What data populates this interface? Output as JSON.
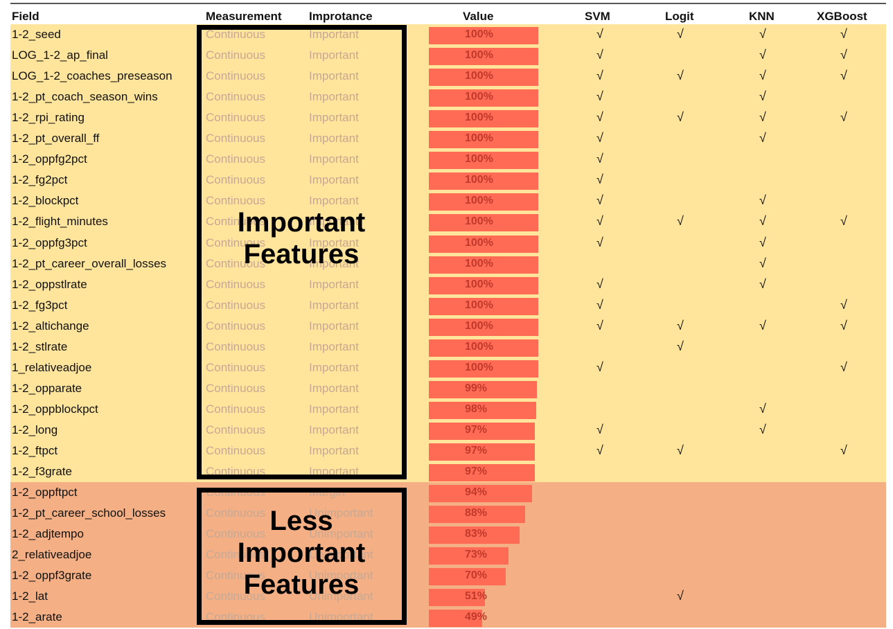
{
  "header": {
    "field": "Field",
    "measurement": "Measurement",
    "importance": "Improtance",
    "value": "Value",
    "svm": "SVM",
    "logit": "Logit",
    "knn": "KNN",
    "xgboost": "XGBoost"
  },
  "check_glyph": "√",
  "colors": {
    "important_band": "#ffe49c",
    "less_important_band": "#f4b084",
    "bar": "#ff6b55",
    "muted_text": "#c7a893"
  },
  "annotations": {
    "important": "Important Features",
    "less_important": "Less Important Features"
  },
  "chart_data": {
    "type": "table",
    "rows": [
      {
        "field": "1-2_seed",
        "measurement": "Continuous",
        "importance": "Important",
        "value": 100,
        "label": "100%",
        "svm": true,
        "logit": true,
        "knn": true,
        "xgb": true
      },
      {
        "field": "LOG_1-2_ap_final",
        "measurement": "Continuous",
        "importance": "Important",
        "value": 100,
        "label": "100%",
        "svm": true,
        "logit": false,
        "knn": true,
        "xgb": true
      },
      {
        "field": "LOG_1-2_coaches_preseason",
        "measurement": "Continuous",
        "importance": "Important",
        "value": 100,
        "label": "100%",
        "svm": true,
        "logit": true,
        "knn": true,
        "xgb": true
      },
      {
        "field": "1-2_pt_coach_season_wins",
        "measurement": "Continuous",
        "importance": "Important",
        "value": 100,
        "label": "100%",
        "svm": true,
        "logit": false,
        "knn": true,
        "xgb": false
      },
      {
        "field": "1-2_rpi_rating",
        "measurement": "Continuous",
        "importance": "Important",
        "value": 100,
        "label": "100%",
        "svm": true,
        "logit": true,
        "knn": true,
        "xgb": true
      },
      {
        "field": "1-2_pt_overall_ff",
        "measurement": "Continuous",
        "importance": "Important",
        "value": 100,
        "label": "100%",
        "svm": true,
        "logit": false,
        "knn": true,
        "xgb": false
      },
      {
        "field": "1-2_oppfg2pct",
        "measurement": "Continuous",
        "importance": "Important",
        "value": 100,
        "label": "100%",
        "svm": true,
        "logit": false,
        "knn": false,
        "xgb": false
      },
      {
        "field": "1-2_fg2pct",
        "measurement": "Continuous",
        "importance": "Important",
        "value": 100,
        "label": "100%",
        "svm": true,
        "logit": false,
        "knn": false,
        "xgb": false
      },
      {
        "field": "1-2_blockpct",
        "measurement": "Continuous",
        "importance": "Important",
        "value": 100,
        "label": "100%",
        "svm": true,
        "logit": false,
        "knn": true,
        "xgb": false
      },
      {
        "field": "1-2_flight_minutes",
        "measurement": "Continuous",
        "importance": "Important",
        "value": 100,
        "label": "100%",
        "svm": true,
        "logit": true,
        "knn": true,
        "xgb": true
      },
      {
        "field": "1-2_oppfg3pct",
        "measurement": "Continuous",
        "importance": "Important",
        "value": 100,
        "label": "100%",
        "svm": true,
        "logit": false,
        "knn": true,
        "xgb": false
      },
      {
        "field": "1-2_pt_career_overall_losses",
        "measurement": "Continuous",
        "importance": "Important",
        "value": 100,
        "label": "100%",
        "svm": false,
        "logit": false,
        "knn": true,
        "xgb": false
      },
      {
        "field": "1-2_oppstlrate",
        "measurement": "Continuous",
        "importance": "Important",
        "value": 100,
        "label": "100%",
        "svm": true,
        "logit": false,
        "knn": true,
        "xgb": false
      },
      {
        "field": "1-2_fg3pct",
        "measurement": "Continuous",
        "importance": "Important",
        "value": 100,
        "label": "100%",
        "svm": true,
        "logit": false,
        "knn": false,
        "xgb": true
      },
      {
        "field": "1-2_altichange",
        "measurement": "Continuous",
        "importance": "Important",
        "value": 100,
        "label": "100%",
        "svm": true,
        "logit": true,
        "knn": true,
        "xgb": true
      },
      {
        "field": "1-2_stlrate",
        "measurement": "Continuous",
        "importance": "Important",
        "value": 100,
        "label": "100%",
        "svm": false,
        "logit": true,
        "knn": false,
        "xgb": false
      },
      {
        "field": "1_relativeadjoe",
        "measurement": "Continuous",
        "importance": "Important",
        "value": 100,
        "label": "100%",
        "svm": true,
        "logit": false,
        "knn": false,
        "xgb": true
      },
      {
        "field": "1-2_opparate",
        "measurement": "Continuous",
        "importance": "Important",
        "value": 99,
        "label": "99%",
        "svm": false,
        "logit": false,
        "knn": false,
        "xgb": false
      },
      {
        "field": "1-2_oppblockpct",
        "measurement": "Continuous",
        "importance": "Important",
        "value": 98,
        "label": "98%",
        "svm": false,
        "logit": false,
        "knn": true,
        "xgb": false
      },
      {
        "field": "1-2_long",
        "measurement": "Continuous",
        "importance": "Important",
        "value": 97,
        "label": "97%",
        "svm": true,
        "logit": false,
        "knn": true,
        "xgb": false
      },
      {
        "field": "1-2_ftpct",
        "measurement": "Continuous",
        "importance": "Important",
        "value": 97,
        "label": "97%",
        "svm": true,
        "logit": true,
        "knn": false,
        "xgb": true
      },
      {
        "field": "1-2_f3grate",
        "measurement": "Continuous",
        "importance": "Important",
        "value": 97,
        "label": "97%",
        "svm": false,
        "logit": false,
        "knn": false,
        "xgb": false
      },
      {
        "field": "1-2_oppftpct",
        "measurement": "Continuous",
        "importance": "Margin",
        "value": 94,
        "label": "94%",
        "svm": false,
        "logit": false,
        "knn": false,
        "xgb": false
      },
      {
        "field": "1-2_pt_career_school_losses",
        "measurement": "Continuous",
        "importance": "Unimportant",
        "value": 88,
        "label": "88%",
        "svm": false,
        "logit": false,
        "knn": false,
        "xgb": false
      },
      {
        "field": "1-2_adjtempo",
        "measurement": "Continuous",
        "importance": "Unimportant",
        "value": 83,
        "label": "83%",
        "svm": false,
        "logit": false,
        "knn": false,
        "xgb": false
      },
      {
        "field": "2_relativeadjoe",
        "measurement": "Continuous",
        "importance": "Unimportant",
        "value": 73,
        "label": "73%",
        "svm": false,
        "logit": false,
        "knn": false,
        "xgb": false
      },
      {
        "field": "1-2_oppf3grate",
        "measurement": "Continuous",
        "importance": "Unimportant",
        "value": 70,
        "label": "70%",
        "svm": false,
        "logit": false,
        "knn": false,
        "xgb": false
      },
      {
        "field": "1-2_lat",
        "measurement": "Continuous",
        "importance": "Unimportant",
        "value": 51,
        "label": "51%",
        "svm": false,
        "logit": true,
        "knn": false,
        "xgb": false
      },
      {
        "field": "1-2_arate",
        "measurement": "Continuous",
        "importance": "Unimportant",
        "value": 49,
        "label": "49%",
        "svm": false,
        "logit": false,
        "knn": false,
        "xgb": false
      }
    ],
    "important_count": 22
  }
}
